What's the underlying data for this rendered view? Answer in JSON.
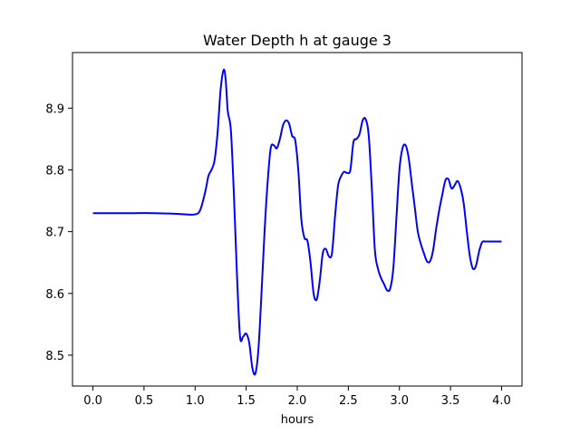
{
  "chart_data": {
    "type": "line",
    "title": "Water Depth h at gauge 3",
    "xlabel": "hours",
    "ylabel": "",
    "xlim": [
      -0.2,
      4.2
    ],
    "ylim": [
      8.45,
      8.99
    ],
    "xticks": [
      0.0,
      0.5,
      1.0,
      1.5,
      2.0,
      2.5,
      3.0,
      3.5,
      4.0
    ],
    "xtick_labels": [
      "0.0",
      "0.5",
      "1.0",
      "1.5",
      "2.0",
      "2.5",
      "3.0",
      "3.5",
      "4.0"
    ],
    "yticks": [
      8.5,
      8.6,
      8.7,
      8.8,
      8.9
    ],
    "ytick_labels": [
      "8.5",
      "8.6",
      "8.7",
      "8.8",
      "8.9"
    ],
    "grid": false,
    "series": [
      {
        "color": "#0000ff",
        "x": [
          0.0,
          0.2,
          0.4,
          0.6,
          0.8,
          0.9,
          1.0,
          1.05,
          1.1,
          1.13,
          1.16,
          1.19,
          1.22,
          1.25,
          1.28,
          1.3,
          1.32,
          1.35,
          1.38,
          1.41,
          1.44,
          1.47,
          1.5,
          1.53,
          1.56,
          1.59,
          1.62,
          1.65,
          1.68,
          1.71,
          1.74,
          1.77,
          1.8,
          1.83,
          1.86,
          1.89,
          1.92,
          1.95,
          1.98,
          2.01,
          2.04,
          2.07,
          2.1,
          2.13,
          2.16,
          2.19,
          2.22,
          2.25,
          2.28,
          2.31,
          2.34,
          2.37,
          2.4,
          2.43,
          2.46,
          2.49,
          2.52,
          2.55,
          2.58,
          2.61,
          2.64,
          2.67,
          2.7,
          2.73,
          2.76,
          2.79,
          2.82,
          2.85,
          2.88,
          2.91,
          2.94,
          2.97,
          3.0,
          3.03,
          3.06,
          3.09,
          3.12,
          3.15,
          3.18,
          3.21,
          3.24,
          3.27,
          3.3,
          3.33,
          3.36,
          3.39,
          3.42,
          3.45,
          3.48,
          3.51,
          3.54,
          3.57,
          3.6,
          3.63,
          3.66,
          3.69,
          3.72,
          3.75,
          3.78,
          3.81,
          3.84,
          3.87,
          3.9,
          3.93,
          3.96,
          4.0
        ],
        "y": [
          8.73,
          8.73,
          8.73,
          8.73,
          8.729,
          8.728,
          8.728,
          8.735,
          8.765,
          8.79,
          8.8,
          8.815,
          8.86,
          8.93,
          8.962,
          8.945,
          8.895,
          8.865,
          8.76,
          8.63,
          8.53,
          8.53,
          8.535,
          8.52,
          8.48,
          8.47,
          8.51,
          8.6,
          8.7,
          8.78,
          8.835,
          8.84,
          8.835,
          8.85,
          8.872,
          8.88,
          8.875,
          8.855,
          8.848,
          8.8,
          8.72,
          8.69,
          8.685,
          8.65,
          8.6,
          8.59,
          8.62,
          8.665,
          8.672,
          8.66,
          8.665,
          8.725,
          8.775,
          8.79,
          8.797,
          8.795,
          8.8,
          8.845,
          8.85,
          8.858,
          8.88,
          8.882,
          8.855,
          8.77,
          8.67,
          8.64,
          8.625,
          8.615,
          8.605,
          8.608,
          8.64,
          8.72,
          8.8,
          8.835,
          8.84,
          8.82,
          8.78,
          8.74,
          8.7,
          8.68,
          8.665,
          8.652,
          8.652,
          8.67,
          8.705,
          8.735,
          8.76,
          8.783,
          8.785,
          8.77,
          8.775,
          8.782,
          8.77,
          8.745,
          8.7,
          8.66,
          8.64,
          8.645,
          8.668,
          8.683,
          8.684,
          8.684,
          8.684,
          8.684,
          8.684,
          8.684
        ]
      }
    ]
  }
}
